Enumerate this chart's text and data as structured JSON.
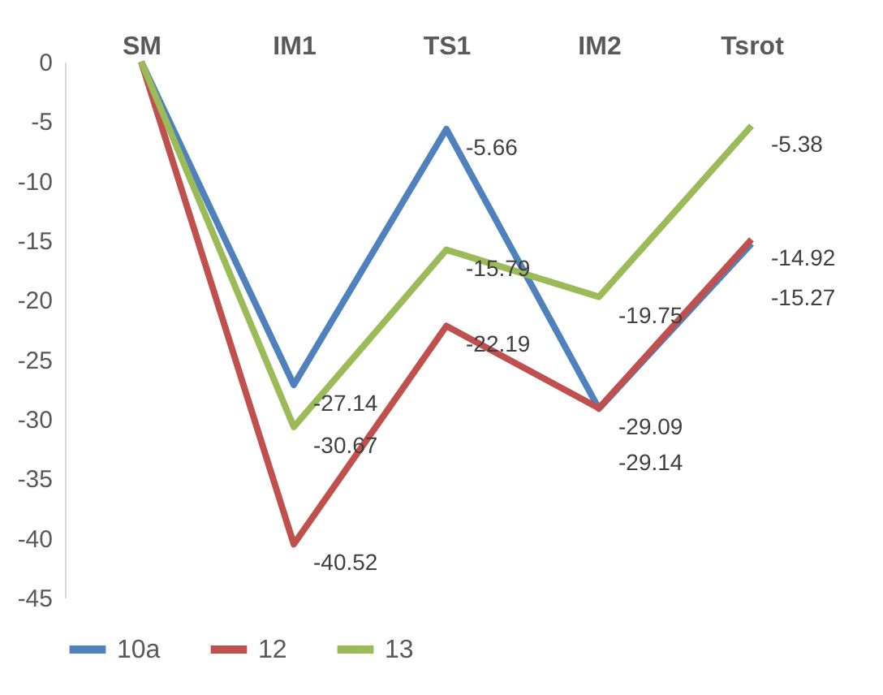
{
  "chart_data": {
    "type": "line",
    "categories": [
      "SM",
      "IM1",
      "TS1",
      "IM2",
      "Tsrot"
    ],
    "ylim": [
      -45,
      0
    ],
    "yticks": [
      0,
      -5,
      -10,
      -15,
      -20,
      -25,
      -30,
      -35,
      -40,
      -45
    ],
    "grid": false,
    "legend": "bottom",
    "marker": "none",
    "line_style": "solid",
    "series": [
      {
        "name": "10a",
        "color": "#4f81bd",
        "values": [
          0,
          -27.14,
          -5.66,
          -29.14,
          -15.27
        ],
        "value_labels": [
          null,
          "-27.14",
          "-5.66",
          "-29.14",
          "-15.27"
        ]
      },
      {
        "name": "12",
        "color": "#c0504d",
        "values": [
          0,
          -40.52,
          -22.19,
          -29.09,
          -14.92
        ],
        "value_labels": [
          null,
          "-40.52",
          "-22.19",
          "-29.09",
          "-14.92"
        ]
      },
      {
        "name": "13",
        "color": "#9bbb59",
        "values": [
          0,
          -30.67,
          -15.79,
          -19.75,
          -5.38
        ],
        "value_labels": [
          null,
          "-30.67",
          "-15.79",
          "-19.75",
          "-5.38"
        ]
      }
    ]
  }
}
